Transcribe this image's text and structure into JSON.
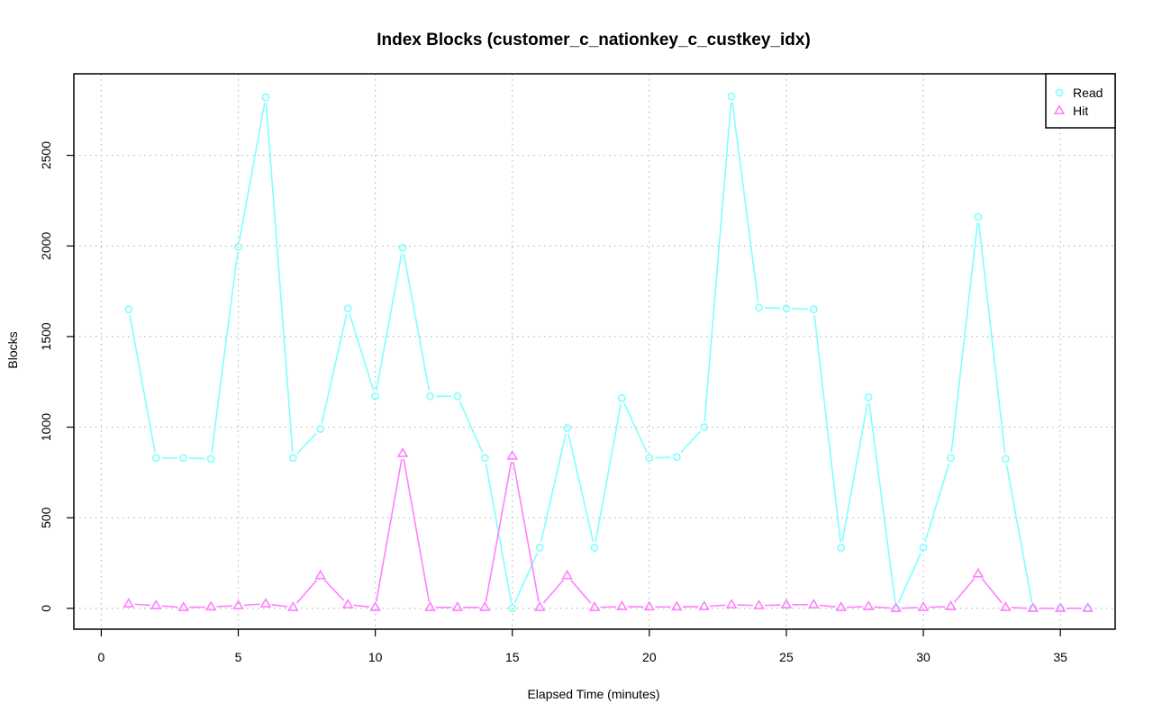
{
  "chart_data": {
    "type": "line",
    "title": "Index Blocks (customer_c_nationkey_c_custkey_idx)",
    "xlabel": "Elapsed Time (minutes)",
    "ylabel": "Blocks",
    "xlim": [
      -1,
      37
    ],
    "ylim": [
      -115,
      2950
    ],
    "xticks": [
      0,
      5,
      10,
      15,
      20,
      25,
      30,
      35
    ],
    "yticks": [
      0,
      500,
      1000,
      1500,
      2000,
      2500
    ],
    "grid": true,
    "legend_position": "top-right",
    "x": [
      1,
      2,
      3,
      4,
      5,
      6,
      7,
      8,
      9,
      10,
      11,
      12,
      13,
      14,
      15,
      16,
      17,
      18,
      19,
      20,
      21,
      22,
      23,
      24,
      25,
      26,
      27,
      28,
      29,
      30,
      31,
      32,
      33,
      34,
      35,
      36
    ],
    "series": [
      {
        "name": "Read",
        "color": "#80ffff",
        "marker": "circle",
        "values": [
          1650,
          830,
          830,
          825,
          1995,
          2820,
          830,
          990,
          1655,
          1170,
          1990,
          1170,
          1170,
          830,
          0,
          335,
          995,
          335,
          1160,
          830,
          835,
          1000,
          2825,
          1660,
          1655,
          1650,
          335,
          1165,
          0,
          335,
          830,
          2160,
          825,
          0,
          0,
          0
        ]
      },
      {
        "name": "Hit",
        "color": "#ff80ff",
        "marker": "triangle",
        "values": [
          25,
          15,
          5,
          8,
          15,
          25,
          5,
          180,
          20,
          5,
          855,
          5,
          5,
          5,
          840,
          5,
          180,
          5,
          10,
          8,
          8,
          10,
          20,
          15,
          20,
          20,
          5,
          10,
          0,
          5,
          10,
          190,
          5,
          0,
          0,
          0
        ]
      }
    ]
  }
}
